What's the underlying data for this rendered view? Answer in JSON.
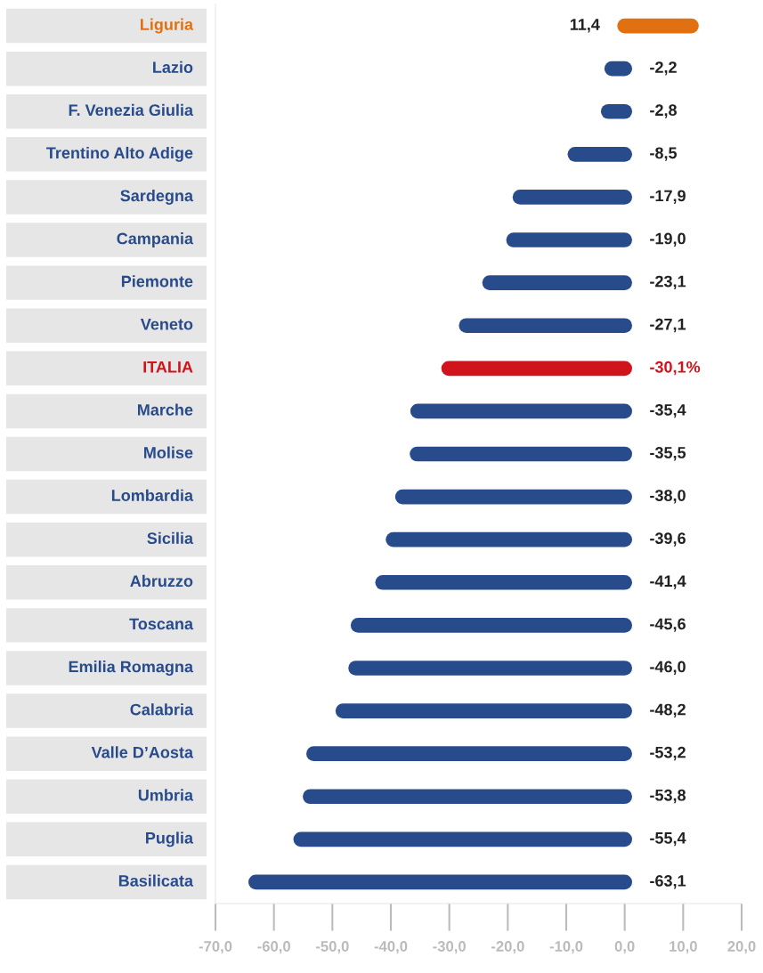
{
  "chart_data": {
    "type": "bar",
    "orientation": "horizontal",
    "categories": [
      "Liguria",
      "Lazio",
      "F. Venezia Giulia",
      "Trentino Alto Adige",
      "Sardegna",
      "Campania",
      "Piemonte",
      "Veneto",
      "ITALIA",
      "Marche",
      "Molise",
      "Lombardia",
      "Sicilia",
      "Abruzzo",
      "Toscana",
      "Emilia Romagna",
      "Calabria",
      "Valle D’Aosta",
      "Umbria",
      "Puglia",
      "Basilicata"
    ],
    "values": [
      11.4,
      -2.2,
      -2.8,
      -8.5,
      -17.9,
      -19.0,
      -23.1,
      -27.1,
      -30.1,
      -35.4,
      -35.5,
      -38.0,
      -39.6,
      -41.4,
      -45.6,
      -46.0,
      -48.2,
      -53.2,
      -53.8,
      -55.4,
      -63.1
    ],
    "value_labels": [
      "11,4",
      "-2,2",
      "-2,8",
      "-8,5",
      "-17,9",
      "-19,0",
      "-23,1",
      "-27,1",
      "-30,1%",
      "-35,4",
      "-35,5",
      "-38,0",
      "-39,6",
      "-41,4",
      "-45,6",
      "-46,0",
      "-48,2",
      "-53,2",
      "-53,8",
      "-55,4",
      "-63,1"
    ],
    "colors": [
      "#e07010",
      "#284b8c",
      "#284b8c",
      "#284b8c",
      "#284b8c",
      "#284b8c",
      "#284b8c",
      "#284b8c",
      "#d0141c",
      "#284b8c",
      "#284b8c",
      "#284b8c",
      "#284b8c",
      "#284b8c",
      "#284b8c",
      "#284b8c",
      "#284b8c",
      "#284b8c",
      "#284b8c",
      "#284b8c",
      "#284b8c"
    ],
    "xlim": [
      -70,
      20
    ],
    "xticks": [
      {
        "value": -70,
        "label": "-70,0"
      },
      {
        "value": -60,
        "label": "-60,0"
      },
      {
        "value": -50,
        "label": "-50,0"
      },
      {
        "value": -40,
        "label": "-40,0"
      },
      {
        "value": -30,
        "label": "-30,0"
      },
      {
        "value": -20,
        "label": "-20,0"
      },
      {
        "value": -10,
        "label": "-10,0"
      },
      {
        "value": 0,
        "label": "0,0"
      },
      {
        "value": 10,
        "label": "10,0"
      },
      {
        "value": 20,
        "label": "20,0"
      }
    ],
    "grid": false
  }
}
